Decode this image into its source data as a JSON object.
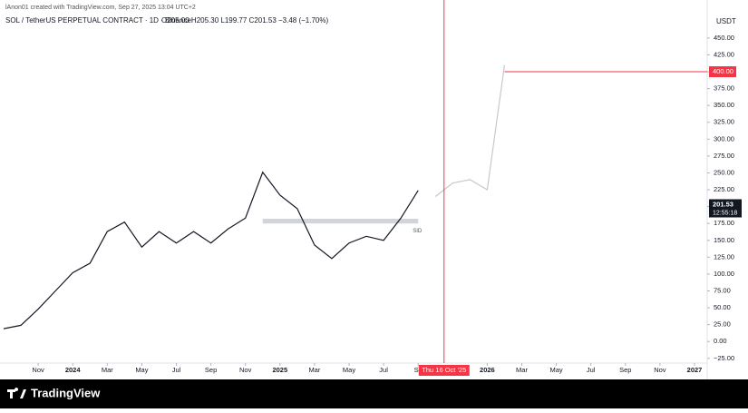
{
  "chart_data": {
    "type": "line",
    "credit": "lAnon01 created with TradingView.com, Sep 27, 2025 13:04 UTC+2",
    "title": "SOL / TetherUS PERPETUAL CONTRACT · 1D · Binance",
    "ohlc_text": "O205.00 H205.30 L199.77 C201.53 −3.48 (−1.70%)",
    "y_unit": "USDT",
    "brand": "TradingView",
    "series": [
      {
        "color": "#131722",
        "x": [
          "2023-09",
          "2023-10",
          "2023-11",
          "2023-12",
          "2024-01",
          "2024-02",
          "2024-03",
          "2024-04",
          "2024-05",
          "2024-06",
          "2024-07",
          "2024-08",
          "2024-09",
          "2024-10",
          "2024-11",
          "2024-12",
          "2025-01",
          "2025-02",
          "2025-03",
          "2025-04",
          "2025-05",
          "2025-06",
          "2025-07",
          "2025-08",
          "2025-09"
        ],
        "values": [
          19,
          24,
          48,
          75,
          102,
          116,
          163,
          177,
          140,
          163,
          146,
          163,
          146,
          167,
          183,
          251,
          217,
          197,
          143,
          123,
          146,
          156,
          150,
          183,
          224
        ]
      },
      {
        "color": "#c8c8c8",
        "x": [
          "2025-10",
          "2025-11",
          "2025-12",
          "2026-01",
          "2026-02"
        ],
        "values": [
          215,
          235,
          240,
          225,
          410
        ]
      }
    ],
    "xlim": [
      "2023-09",
      "2027-01"
    ],
    "xticks": [
      {
        "value": "2023-11",
        "label": "Nov"
      },
      {
        "value": "2024-01",
        "label": "2024"
      },
      {
        "value": "2024-03",
        "label": "Mar"
      },
      {
        "value": "2024-05",
        "label": "May"
      },
      {
        "value": "2024-07",
        "label": "Jul"
      },
      {
        "value": "2024-09",
        "label": "Sep"
      },
      {
        "value": "2024-11",
        "label": "Nov"
      },
      {
        "value": "2025-01",
        "label": "2025"
      },
      {
        "value": "2025-03",
        "label": "Mar"
      },
      {
        "value": "2025-05",
        "label": "May"
      },
      {
        "value": "2025-07",
        "label": "Jul"
      },
      {
        "value": "2025-09",
        "label": "Se"
      },
      {
        "value": "2026-01",
        "label": "2026"
      },
      {
        "value": "2026-03",
        "label": "Mar"
      },
      {
        "value": "2026-05",
        "label": "May"
      },
      {
        "value": "2026-07",
        "label": "Jul"
      },
      {
        "value": "2026-09",
        "label": "Sep"
      },
      {
        "value": "2026-11",
        "label": "Nov"
      },
      {
        "value": "2027-01",
        "label": "2027"
      }
    ],
    "ylim": [
      -32,
      466
    ],
    "yticks": [
      {
        "value": -25,
        "label": "−25.00"
      },
      {
        "value": 0,
        "label": "0.00"
      },
      {
        "value": 25,
        "label": "25.00"
      },
      {
        "value": 50,
        "label": "50.00"
      },
      {
        "value": 75,
        "label": "75.00"
      },
      {
        "value": 100,
        "label": "100.00"
      },
      {
        "value": 125,
        "label": "125.00"
      },
      {
        "value": 150,
        "label": "150.00"
      },
      {
        "value": 175,
        "label": "175.00"
      },
      {
        "value": 200,
        "label": "200.00"
      },
      {
        "value": 225,
        "label": "225.00"
      },
      {
        "value": 250,
        "label": "250.00"
      },
      {
        "value": 275,
        "label": "275.00"
      },
      {
        "value": 300,
        "label": "300.00"
      },
      {
        "value": 325,
        "label": "325.00"
      },
      {
        "value": 350,
        "label": "350.00"
      },
      {
        "value": 375,
        "label": "375.00"
      },
      {
        "value": 400,
        "label": "400.00"
      },
      {
        "value": 425,
        "label": "425.00"
      },
      {
        "value": 450,
        "label": "450.00"
      }
    ],
    "target_line": {
      "value": 400,
      "label": "400.00",
      "from": "2026-02",
      "color": "#f23645"
    },
    "current_price": {
      "value": 201.53,
      "label": "201.53",
      "countdown": "12:55:18"
    },
    "date_marker": {
      "value": "2025-10-16",
      "label": "Thu 16 Oct '25",
      "color": "#f23645"
    },
    "support_band": {
      "values": [
        175,
        182
      ],
      "from": "2024-12",
      "to": "2025-09",
      "label": "SID"
    }
  }
}
